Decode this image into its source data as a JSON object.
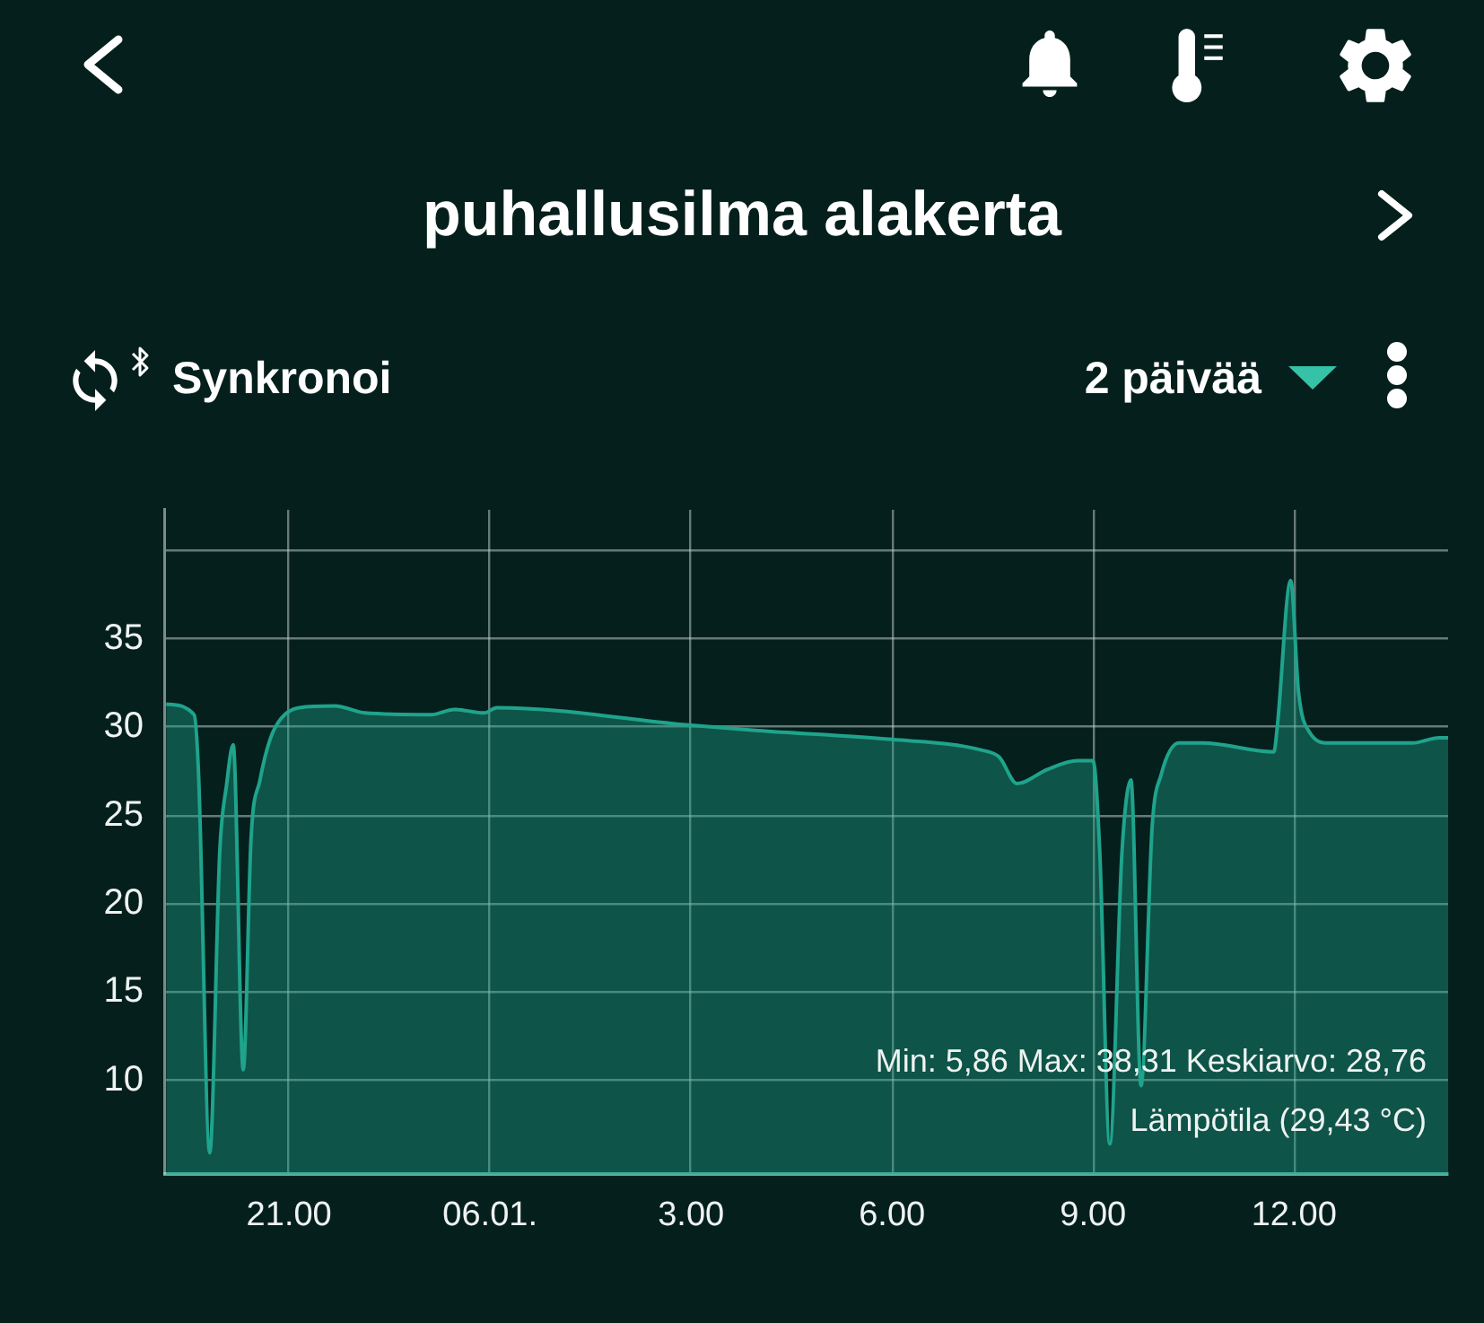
{
  "chart_data": {
    "type": "area",
    "title": "puhallusilma alakerta",
    "annotations": [
      "Synkronoi",
      "2 päivää",
      "Min: 5,86 Max: 38,31 Keskiarvo: 28,76",
      "Lämpötila (29,43 °C)"
    ],
    "series": [
      {
        "color": "#1fa38c",
        "x": [
          "--01-05T19:10",
          "--01-05T19:35",
          "--01-05T19:39",
          "--01-05T19:49",
          "--01-05T19:58",
          "--01-05T20:04",
          "--01-05T20:10",
          "--01-05T20:19",
          "--01-05T20:26",
          "--01-05T20:34",
          "--01-05T20:43",
          "--01-05T20:53",
          "--01-05T21:09",
          "--01-05T21:41",
          "--01-05T22:08",
          "--01-05T23:07",
          "--01-05T23:28",
          "--01-05T23:55",
          "--01-06T00:06",
          "--01-06T03:00",
          "--01-06T04:00",
          "--01-06T06:00",
          "--01-06T07:20",
          "--01-06T07:36",
          "--01-06T07:52",
          "--01-06T08:19",
          "--01-06T08:46",
          "--01-06T09:00",
          "--01-06T09:06",
          "--01-06T09:15",
          "--01-06T09:26",
          "--01-06T09:34",
          "--01-06T09:43",
          "--01-06T09:53",
          "--01-06T10:01",
          "--01-06T10:17",
          "--01-06T10:38",
          "--01-06T11:42",
          "--01-06T11:45",
          "--01-06T11:57",
          "--01-06T12:04",
          "--01-06T12:14",
          "--01-06T12:31",
          "--01-06T13:46",
          "--01-06T14:10",
          "--01-06T14:18"
        ],
        "values": [
          31.3,
          30.7,
          27.3,
          5.9,
          23.0,
          26.7,
          29.0,
          10.6,
          23.7,
          27.0,
          29.3,
          30.5,
          31.1,
          31.2,
          30.8,
          30.7,
          31.0,
          30.8,
          31.1,
          30.1,
          29.8,
          29.3,
          28.7,
          28.3,
          26.8,
          27.6,
          28.1,
          28.1,
          23.0,
          6.4,
          23.0,
          27.0,
          9.7,
          24.4,
          27.3,
          29.1,
          29.1,
          28.6,
          30.0,
          38.3,
          32.0,
          29.7,
          29.1,
          29.1,
          29.4,
          29.4
        ]
      }
    ],
    "xlim": [
      "--01-05T19:09",
      "--01-06T14:18"
    ],
    "xticks": [
      {
        "value": "--01-05T21:00",
        "label": "21.00"
      },
      {
        "value": "--01-06",
        "label": "06.01."
      },
      {
        "value": "--01-06T03:00",
        "label": "3.00"
      },
      {
        "value": "--01-06T06:00",
        "label": "6.00"
      },
      {
        "value": "--01-06T09:00",
        "label": "9.00"
      },
      {
        "value": "--01-06T12:00",
        "label": "12.00"
      }
    ],
    "ylim": [
      4.7,
      42.3
    ],
    "yticks": [
      10,
      15,
      20,
      25,
      30,
      35,
      {
        "value": 40,
        "label": null
      }
    ],
    "grid": true,
    "marker": "none",
    "line_style": "solid"
  }
}
